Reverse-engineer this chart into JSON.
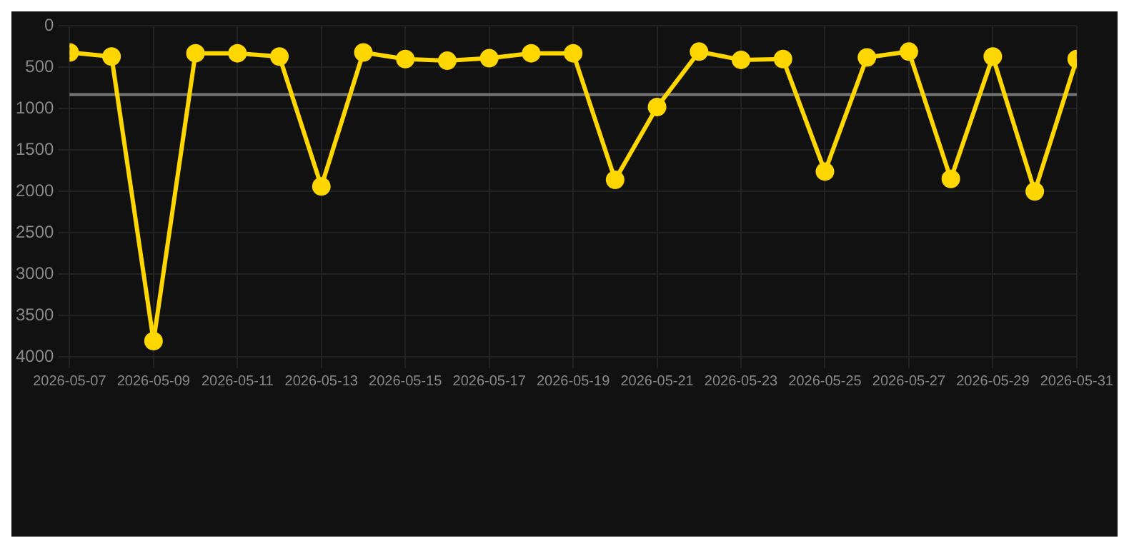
{
  "chart_data": {
    "type": "line",
    "x": [
      "2026-05-07",
      "2026-05-08",
      "2026-05-09",
      "2026-05-10",
      "2026-05-11",
      "2026-05-12",
      "2026-05-13",
      "2026-05-14",
      "2026-05-15",
      "2026-05-16",
      "2026-05-17",
      "2026-05-18",
      "2026-05-19",
      "2026-05-20",
      "2026-05-21",
      "2026-05-22",
      "2026-05-23",
      "2026-05-24",
      "2026-05-25",
      "2026-05-26",
      "2026-05-27",
      "2026-05-28",
      "2026-05-29",
      "2026-05-30",
      "2026-05-31"
    ],
    "series": [
      {
        "color": "#ffd700",
        "values": [
          320,
          370,
          3810,
          330,
          330,
          370,
          1940,
          320,
          400,
          420,
          390,
          330,
          330,
          1860,
          980,
          310,
          410,
          400,
          1760,
          380,
          310,
          1850,
          370,
          2000,
          400
        ]
      }
    ],
    "ylim": [
      4000,
      0
    ],
    "yticks": [
      0,
      500,
      1000,
      1500,
      2000,
      2500,
      3000,
      3500,
      4000
    ],
    "xlim": [
      "2026-05-07",
      "2026-05-31"
    ],
    "xticks": [
      "2026-05-07",
      "2026-05-09",
      "2026-05-11",
      "2026-05-13",
      "2026-05-15",
      "2026-05-17",
      "2026-05-19",
      "2026-05-21",
      "2026-05-23",
      "2026-05-25",
      "2026-05-27",
      "2026-05-29",
      "2026-05-31"
    ],
    "ref_lines": [
      {
        "axis": "y",
        "value": 830,
        "color": "#777777"
      }
    ],
    "grid": true,
    "marker": "circle",
    "line_style": "solid",
    "legend": false
  }
}
